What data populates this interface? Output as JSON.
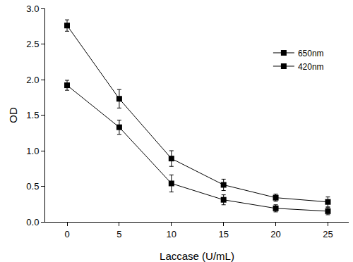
{
  "chart_data": {
    "type": "line",
    "x_label": "Laccase (U/mL)",
    "y_label": "OD",
    "x": [
      0,
      5,
      10,
      15,
      20,
      25
    ],
    "series": [
      {
        "name": "650nm",
        "color": "#000000",
        "marker": "square",
        "line_style": "solid",
        "values": [
          2.76,
          1.73,
          0.89,
          0.52,
          0.34,
          0.28
        ],
        "errors": [
          0.08,
          0.13,
          0.11,
          0.08,
          0.05,
          0.07
        ]
      },
      {
        "name": "420nm",
        "color": "#000000",
        "marker": "square",
        "line_style": "solid",
        "values": [
          1.92,
          1.33,
          0.54,
          0.31,
          0.19,
          0.15
        ],
        "errors": [
          0.07,
          0.1,
          0.12,
          0.07,
          0.05,
          0.05
        ]
      }
    ],
    "xlim": [
      -2.1,
      27
    ],
    "xticks": [
      0,
      5,
      10,
      15,
      20,
      25
    ],
    "ylim": [
      0,
      3
    ],
    "yticks": [
      {
        "value": 0,
        "label": "0.0"
      },
      {
        "value": 0.5,
        "label": "0.5"
      },
      {
        "value": 1,
        "label": "1.0"
      },
      {
        "value": 1.5,
        "label": "1.5"
      },
      {
        "value": 2,
        "label": "2.0"
      },
      {
        "value": 2.5,
        "label": "2.5"
      },
      {
        "value": 3,
        "label": "3.0"
      }
    ],
    "grid": false,
    "legend": "upper right"
  }
}
